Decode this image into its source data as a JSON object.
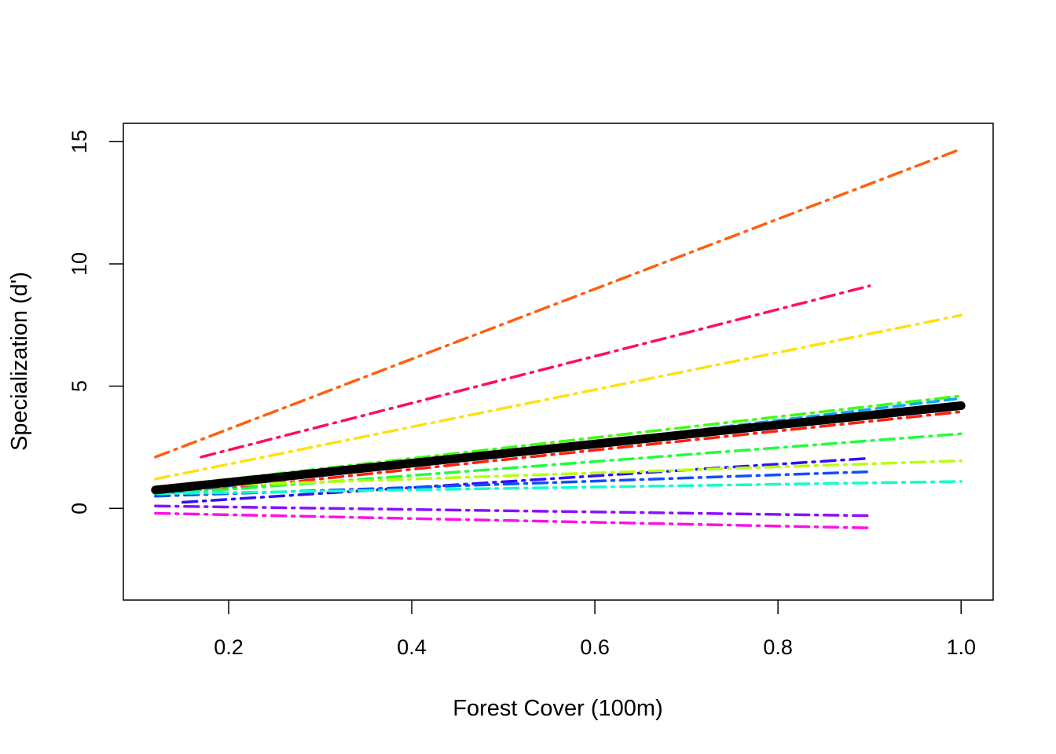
{
  "chart_data": {
    "type": "line",
    "title": "",
    "xlabel": "Forest Cover (100m)",
    "ylabel": "Specialization (d')",
    "xlim": [
      0.085,
      1.035
    ],
    "ylim": [
      -3.75,
      15.75
    ],
    "xticks": [
      0.2,
      0.4,
      0.6,
      0.8,
      1.0
    ],
    "xtick_labels": [
      "0.2",
      "0.4",
      "0.6",
      "0.8",
      "1.0"
    ],
    "yticks": [
      0,
      5,
      10,
      15
    ],
    "ytick_labels": [
      "0",
      "5",
      "10",
      "15"
    ],
    "grid": false,
    "legend": "none",
    "series": [
      {
        "color": "#FF5F0F",
        "style": "dashdot",
        "x": [
          0.12,
          1.0
        ],
        "y": [
          2.1,
          14.7
        ]
      },
      {
        "color": "#FF0F57",
        "style": "dashdot",
        "x": [
          0.17,
          0.9
        ],
        "y": [
          2.1,
          9.1
        ]
      },
      {
        "color": "#FFE00F",
        "style": "dashdot",
        "x": [
          0.12,
          1.0
        ],
        "y": [
          1.2,
          7.9
        ]
      },
      {
        "color": "#3CFF0F",
        "style": "dashdot",
        "x": [
          0.12,
          1.0
        ],
        "y": [
          0.85,
          4.6
        ]
      },
      {
        "color": "#0FA8FF",
        "style": "dashed",
        "x": [
          0.12,
          1.0
        ],
        "y": [
          0.55,
          4.5
        ]
      },
      {
        "color": "#FF1F0F",
        "style": "dashdot",
        "x": [
          0.12,
          1.0
        ],
        "y": [
          0.5,
          3.95
        ]
      },
      {
        "color": "#1FFF3C",
        "style": "dashdot",
        "x": [
          0.12,
          1.0
        ],
        "y": [
          0.55,
          3.05
        ]
      },
      {
        "color": "#2F0FFF",
        "style": "dashdot",
        "x": [
          0.15,
          0.9
        ],
        "y": [
          0.25,
          2.05
        ]
      },
      {
        "color": "#B8FF0F",
        "style": "dashdot",
        "x": [
          0.12,
          1.0
        ],
        "y": [
          0.85,
          1.95
        ]
      },
      {
        "color": "#0F4FFF",
        "style": "dashdot",
        "x": [
          0.12,
          0.9
        ],
        "y": [
          0.5,
          1.5
        ]
      },
      {
        "color": "#0FFFC8",
        "style": "dashdot",
        "x": [
          0.12,
          1.0
        ],
        "y": [
          0.6,
          1.1
        ]
      },
      {
        "color": "#8A0FFF",
        "style": "dashdot",
        "x": [
          0.12,
          0.9
        ],
        "y": [
          0.1,
          -0.3
        ]
      },
      {
        "color": "#FF0FE8",
        "style": "dashdot",
        "x": [
          0.12,
          0.9
        ],
        "y": [
          -0.2,
          -0.8
        ]
      },
      {
        "color": "#000000",
        "style": "solid",
        "overall": true,
        "x": [
          0.12,
          1.0
        ],
        "y": [
          0.75,
          4.2
        ]
      }
    ]
  }
}
